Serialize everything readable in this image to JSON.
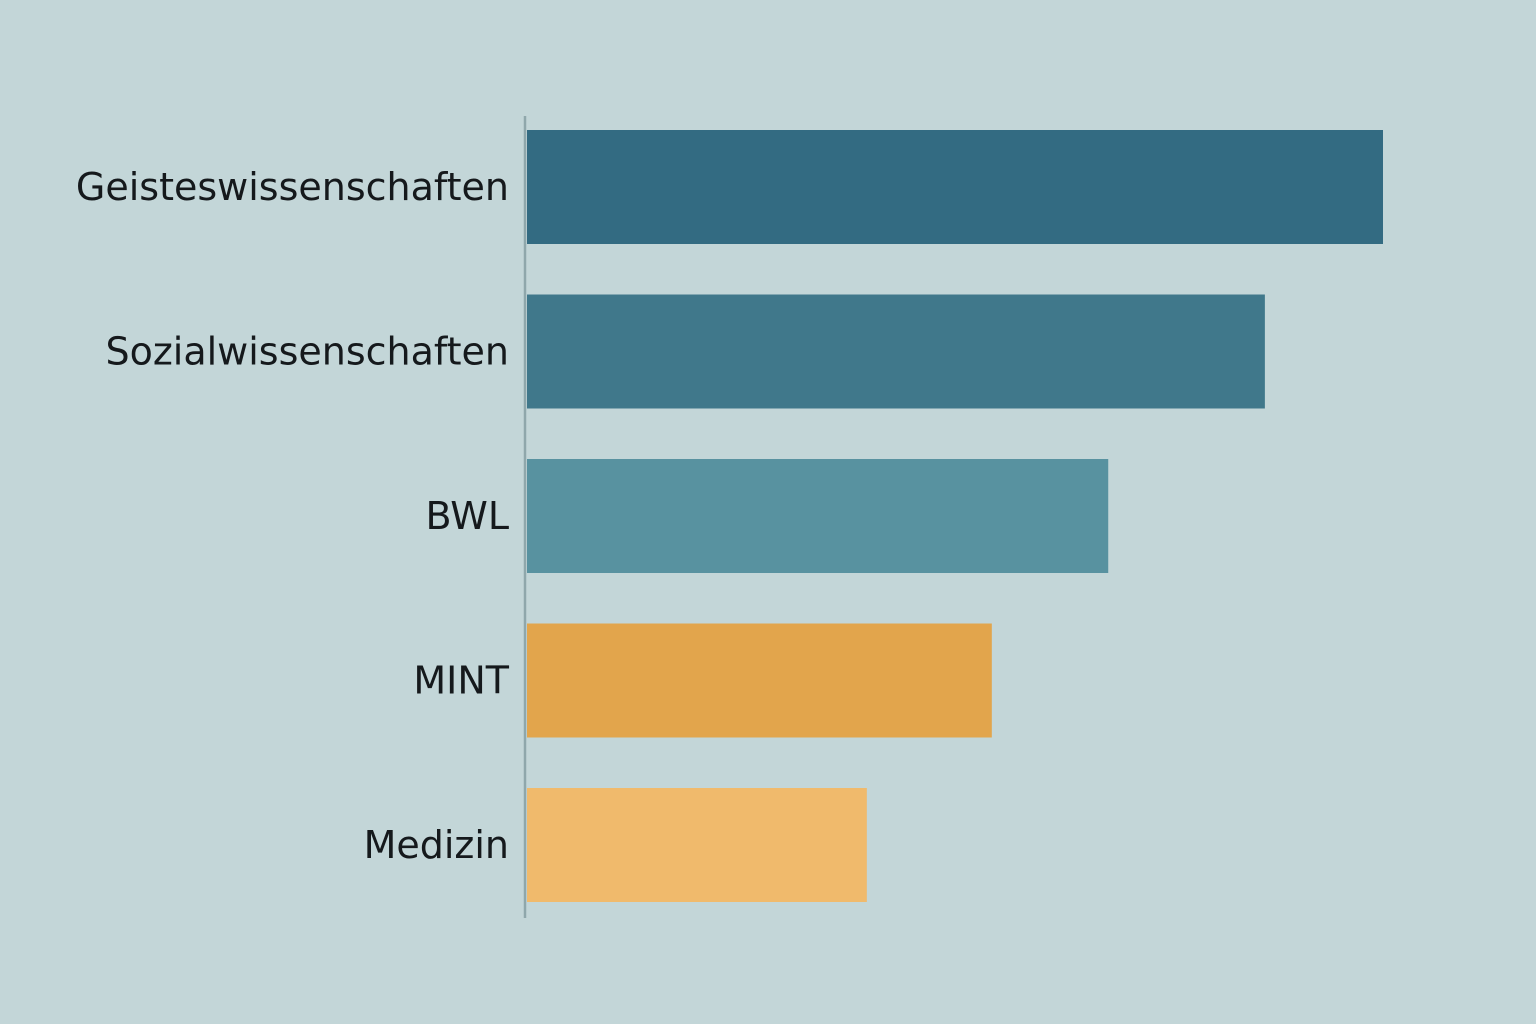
{
  "chart_data": {
    "type": "bar",
    "orientation": "horizontal",
    "categories": [
      "Geisteswissenschaften",
      "Sozialwissenschaften",
      "BWL",
      "MINT",
      "Medizin"
    ],
    "values": [
      100,
      86.2,
      67.9,
      54.3,
      39.7
    ],
    "colors": [
      "#336b82",
      "#40788b",
      "#5892a0",
      "#e2a54c",
      "#f0ba6c"
    ],
    "title": "",
    "xlabel": "",
    "ylabel": "",
    "xlim": [
      0,
      100
    ],
    "grid": false,
    "legend": "none"
  }
}
